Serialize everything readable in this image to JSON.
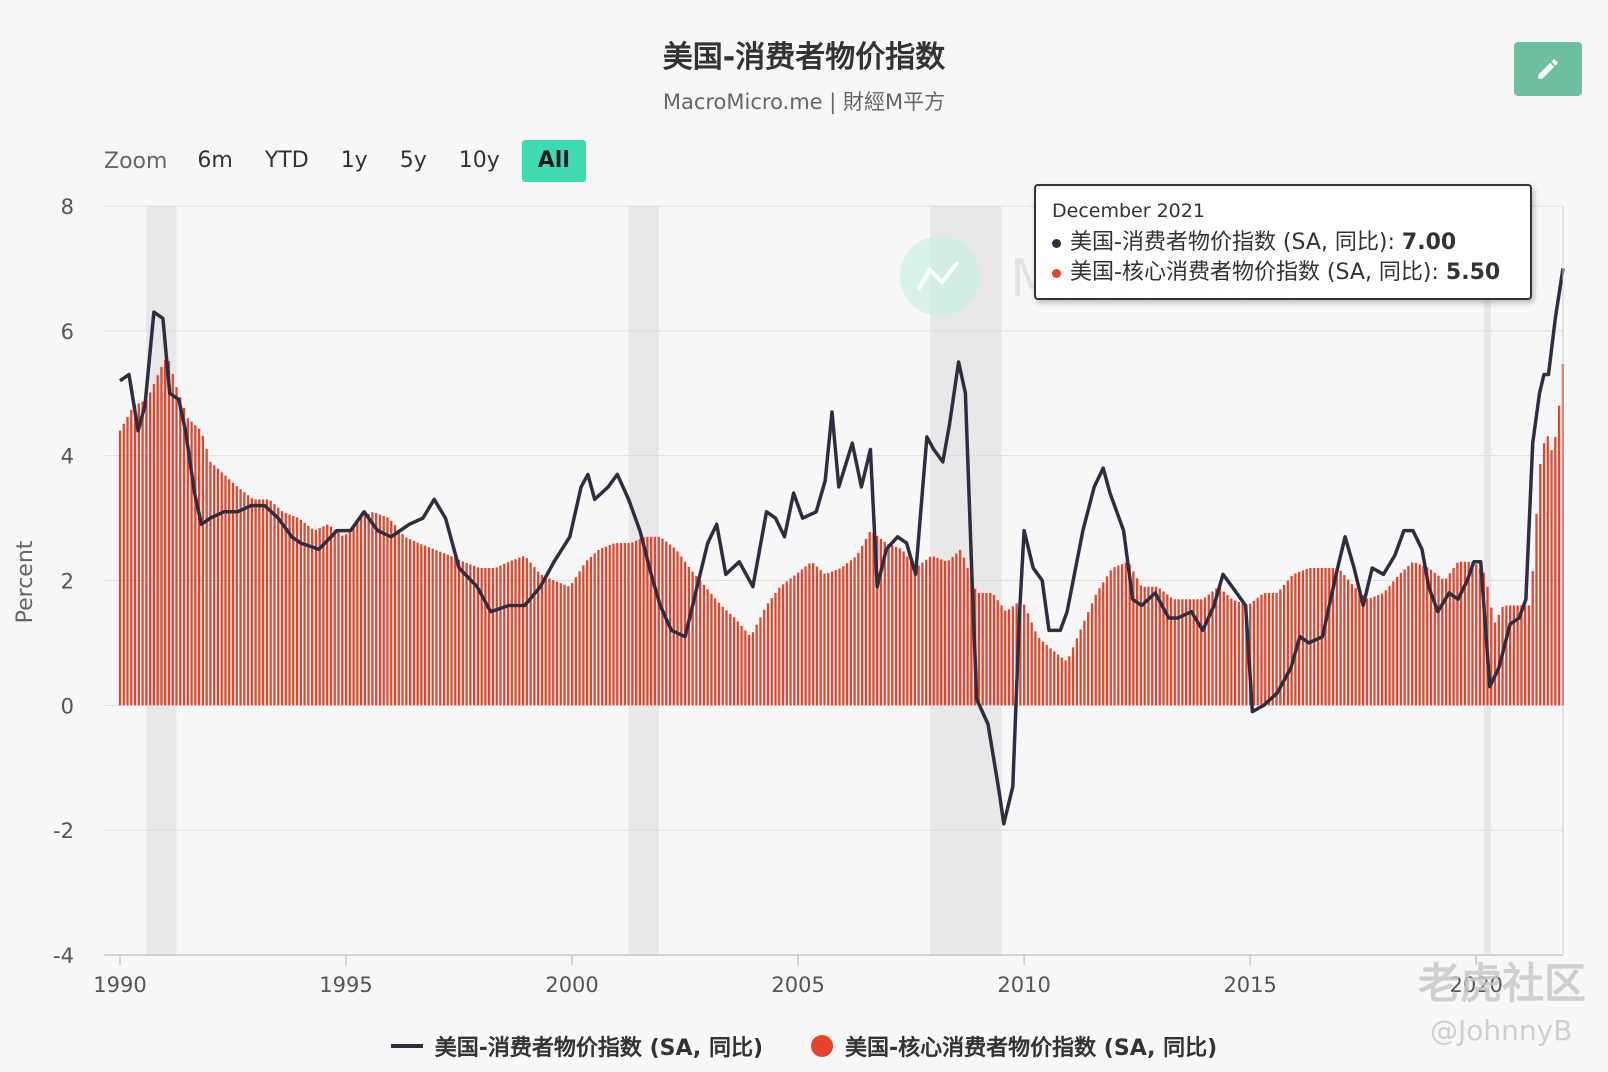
{
  "header": {
    "title": "美国-消费者物价指数",
    "subtitle": "MacroMicro.me | 財經M平方",
    "edit_icon": "pencil-icon"
  },
  "zoom": {
    "label": "Zoom",
    "options": [
      "6m",
      "YTD",
      "1y",
      "5y",
      "10y",
      "All"
    ],
    "active": "All"
  },
  "tooltip": {
    "date": "December 2021",
    "rows": [
      {
        "label": "美国-消费者物价指数 (SA, 同比): ",
        "value": "7.00",
        "color": "#2d2f40"
      },
      {
        "label": "美国-核心消费者物价指数 (SA, 同比): ",
        "value": "5.50",
        "color": "#e8432a"
      }
    ]
  },
  "legend": {
    "line_label": "美国-消费者物价指数 (SA, 同比)",
    "bar_label": "美国-核心消费者物价指数 (SA, 同比)"
  },
  "watermark": {
    "brand": "MacroMicro",
    "community": "老虎社区",
    "handle": "@JohnnyB"
  },
  "chart_data": {
    "type": "line+bar",
    "ylabel": "Percent",
    "ylim": [
      -4,
      8
    ],
    "yticks": [
      -4,
      -2,
      0,
      2,
      4,
      6,
      8
    ],
    "xlim": [
      1990.0,
      2021.92
    ],
    "xticks": [
      1990,
      1995,
      2000,
      2005,
      2010,
      2015,
      2020
    ],
    "recessions": [
      [
        1990.58,
        1991.25
      ],
      [
        2001.25,
        2001.92
      ],
      [
        2007.92,
        2009.5
      ],
      [
        2020.17,
        2020.33
      ]
    ],
    "colors": {
      "cpi": "#2d2f40",
      "core": "#e8432a",
      "recession": "#e8e8e8"
    },
    "series": [
      {
        "name": "美国-消费者物价指数 (SA, 同比)",
        "type": "line",
        "points": [
          [
            1990.0,
            5.2
          ],
          [
            1990.2,
            5.3
          ],
          [
            1990.4,
            4.4
          ],
          [
            1990.55,
            4.8
          ],
          [
            1990.75,
            6.3
          ],
          [
            1990.95,
            6.2
          ],
          [
            1991.1,
            5.0
          ],
          [
            1991.3,
            4.9
          ],
          [
            1991.45,
            4.4
          ],
          [
            1991.65,
            3.4
          ],
          [
            1991.8,
            2.9
          ],
          [
            1992.0,
            3.0
          ],
          [
            1992.3,
            3.1
          ],
          [
            1992.6,
            3.1
          ],
          [
            1992.9,
            3.2
          ],
          [
            1993.2,
            3.2
          ],
          [
            1993.5,
            3.0
          ],
          [
            1993.8,
            2.7
          ],
          [
            1994.0,
            2.6
          ],
          [
            1994.4,
            2.5
          ],
          [
            1994.8,
            2.8
          ],
          [
            1995.1,
            2.8
          ],
          [
            1995.4,
            3.1
          ],
          [
            1995.7,
            2.8
          ],
          [
            1996.0,
            2.7
          ],
          [
            1996.4,
            2.9
          ],
          [
            1996.7,
            3.0
          ],
          [
            1996.95,
            3.3
          ],
          [
            1997.2,
            3.0
          ],
          [
            1997.5,
            2.2
          ],
          [
            1997.9,
            1.9
          ],
          [
            1998.2,
            1.5
          ],
          [
            1998.6,
            1.6
          ],
          [
            1998.95,
            1.6
          ],
          [
            1999.3,
            1.9
          ],
          [
            1999.6,
            2.3
          ],
          [
            1999.95,
            2.7
          ],
          [
            2000.2,
            3.5
          ],
          [
            2000.35,
            3.7
          ],
          [
            2000.5,
            3.3
          ],
          [
            2000.8,
            3.5
          ],
          [
            2001.0,
            3.7
          ],
          [
            2001.25,
            3.3
          ],
          [
            2001.5,
            2.8
          ],
          [
            2001.75,
            2.1
          ],
          [
            2001.95,
            1.6
          ],
          [
            2002.2,
            1.2
          ],
          [
            2002.5,
            1.1
          ],
          [
            2002.8,
            2.0
          ],
          [
            2003.0,
            2.6
          ],
          [
            2003.2,
            2.9
          ],
          [
            2003.4,
            2.1
          ],
          [
            2003.7,
            2.3
          ],
          [
            2004.0,
            1.9
          ],
          [
            2004.3,
            3.1
          ],
          [
            2004.5,
            3.0
          ],
          [
            2004.7,
            2.7
          ],
          [
            2004.9,
            3.4
          ],
          [
            2005.1,
            3.0
          ],
          [
            2005.4,
            3.1
          ],
          [
            2005.6,
            3.6
          ],
          [
            2005.75,
            4.7
          ],
          [
            2005.9,
            3.5
          ],
          [
            2006.2,
            4.2
          ],
          [
            2006.4,
            3.5
          ],
          [
            2006.6,
            4.1
          ],
          [
            2006.75,
            1.9
          ],
          [
            2006.95,
            2.5
          ],
          [
            2007.2,
            2.7
          ],
          [
            2007.4,
            2.6
          ],
          [
            2007.6,
            2.1
          ],
          [
            2007.85,
            4.3
          ],
          [
            2008.0,
            4.1
          ],
          [
            2008.2,
            3.9
          ],
          [
            2008.35,
            4.5
          ],
          [
            2008.55,
            5.5
          ],
          [
            2008.7,
            5.0
          ],
          [
            2008.85,
            2.0
          ],
          [
            2008.95,
            0.1
          ],
          [
            2009.2,
            -0.3
          ],
          [
            2009.45,
            -1.4
          ],
          [
            2009.55,
            -1.9
          ],
          [
            2009.75,
            -1.3
          ],
          [
            2009.9,
            1.5
          ],
          [
            2010.0,
            2.8
          ],
          [
            2010.2,
            2.2
          ],
          [
            2010.4,
            2.0
          ],
          [
            2010.55,
            1.2
          ],
          [
            2010.8,
            1.2
          ],
          [
            2010.95,
            1.5
          ],
          [
            2011.3,
            2.8
          ],
          [
            2011.55,
            3.5
          ],
          [
            2011.75,
            3.8
          ],
          [
            2011.9,
            3.4
          ],
          [
            2012.2,
            2.8
          ],
          [
            2012.4,
            1.7
          ],
          [
            2012.6,
            1.6
          ],
          [
            2012.9,
            1.8
          ],
          [
            2013.2,
            1.4
          ],
          [
            2013.4,
            1.4
          ],
          [
            2013.7,
            1.5
          ],
          [
            2013.95,
            1.2
          ],
          [
            2014.2,
            1.6
          ],
          [
            2014.4,
            2.1
          ],
          [
            2014.6,
            1.9
          ],
          [
            2014.9,
            1.6
          ],
          [
            2015.05,
            -0.1
          ],
          [
            2015.3,
            0.0
          ],
          [
            2015.6,
            0.2
          ],
          [
            2015.9,
            0.6
          ],
          [
            2016.1,
            1.1
          ],
          [
            2016.3,
            1.0
          ],
          [
            2016.6,
            1.1
          ],
          [
            2016.9,
            2.1
          ],
          [
            2017.1,
            2.7
          ],
          [
            2017.3,
            2.2
          ],
          [
            2017.5,
            1.6
          ],
          [
            2017.7,
            2.2
          ],
          [
            2017.95,
            2.1
          ],
          [
            2018.2,
            2.4
          ],
          [
            2018.4,
            2.8
          ],
          [
            2018.6,
            2.8
          ],
          [
            2018.8,
            2.5
          ],
          [
            2018.95,
            1.9
          ],
          [
            2019.15,
            1.5
          ],
          [
            2019.4,
            1.8
          ],
          [
            2019.6,
            1.7
          ],
          [
            2019.8,
            2.0
          ],
          [
            2019.95,
            2.3
          ],
          [
            2020.1,
            2.3
          ],
          [
            2020.3,
            0.3
          ],
          [
            2020.5,
            0.6
          ],
          [
            2020.75,
            1.3
          ],
          [
            2020.95,
            1.4
          ],
          [
            2021.1,
            1.7
          ],
          [
            2021.25,
            4.2
          ],
          [
            2021.4,
            5.0
          ],
          [
            2021.5,
            5.3
          ],
          [
            2021.6,
            5.3
          ],
          [
            2021.75,
            6.2
          ],
          [
            2021.92,
            7.0
          ]
        ]
      },
      {
        "name": "美国-核心消费者物价指数 (SA, 同比)",
        "type": "bar",
        "points": [
          [
            1990.0,
            4.4
          ],
          [
            1990.3,
            4.8
          ],
          [
            1990.6,
            4.9
          ],
          [
            1990.9,
            5.4
          ],
          [
            1991.05,
            5.6
          ],
          [
            1991.25,
            5.1
          ],
          [
            1991.5,
            4.6
          ],
          [
            1991.8,
            4.4
          ],
          [
            1992.0,
            3.9
          ],
          [
            1992.3,
            3.7
          ],
          [
            1992.6,
            3.5
          ],
          [
            1992.95,
            3.3
          ],
          [
            1993.3,
            3.3
          ],
          [
            1993.6,
            3.1
          ],
          [
            1993.95,
            3.0
          ],
          [
            1994.3,
            2.8
          ],
          [
            1994.6,
            2.9
          ],
          [
            1994.95,
            2.7
          ],
          [
            1995.3,
            3.0
          ],
          [
            1995.6,
            3.1
          ],
          [
            1995.95,
            3.0
          ],
          [
            1996.3,
            2.7
          ],
          [
            1996.6,
            2.6
          ],
          [
            1996.95,
            2.5
          ],
          [
            1997.3,
            2.4
          ],
          [
            1997.6,
            2.3
          ],
          [
            1997.95,
            2.2
          ],
          [
            1998.3,
            2.2
          ],
          [
            1998.6,
            2.3
          ],
          [
            1998.95,
            2.4
          ],
          [
            1999.3,
            2.1
          ],
          [
            1999.6,
            2.0
          ],
          [
            1999.95,
            1.9
          ],
          [
            2000.3,
            2.3
          ],
          [
            2000.6,
            2.5
          ],
          [
            2000.95,
            2.6
          ],
          [
            2001.3,
            2.6
          ],
          [
            2001.6,
            2.7
          ],
          [
            2001.95,
            2.7
          ],
          [
            2002.3,
            2.5
          ],
          [
            2002.6,
            2.2
          ],
          [
            2002.95,
            1.9
          ],
          [
            2003.3,
            1.6
          ],
          [
            2003.6,
            1.4
          ],
          [
            2003.95,
            1.1
          ],
          [
            2004.3,
            1.6
          ],
          [
            2004.6,
            1.9
          ],
          [
            2004.95,
            2.1
          ],
          [
            2005.3,
            2.3
          ],
          [
            2005.6,
            2.1
          ],
          [
            2005.95,
            2.2
          ],
          [
            2006.3,
            2.4
          ],
          [
            2006.6,
            2.8
          ],
          [
            2006.95,
            2.6
          ],
          [
            2007.3,
            2.5
          ],
          [
            2007.6,
            2.2
          ],
          [
            2007.95,
            2.4
          ],
          [
            2008.3,
            2.3
          ],
          [
            2008.6,
            2.5
          ],
          [
            2008.95,
            1.8
          ],
          [
            2009.3,
            1.8
          ],
          [
            2009.6,
            1.5
          ],
          [
            2009.95,
            1.7
          ],
          [
            2010.3,
            1.1
          ],
          [
            2010.6,
            0.9
          ],
          [
            2010.95,
            0.7
          ],
          [
            2011.3,
            1.3
          ],
          [
            2011.6,
            1.8
          ],
          [
            2011.95,
            2.2
          ],
          [
            2012.3,
            2.3
          ],
          [
            2012.6,
            1.9
          ],
          [
            2012.95,
            1.9
          ],
          [
            2013.3,
            1.7
          ],
          [
            2013.6,
            1.7
          ],
          [
            2013.95,
            1.7
          ],
          [
            2014.3,
            1.9
          ],
          [
            2014.6,
            1.7
          ],
          [
            2014.95,
            1.6
          ],
          [
            2015.3,
            1.8
          ],
          [
            2015.6,
            1.8
          ],
          [
            2015.95,
            2.1
          ],
          [
            2016.3,
            2.2
          ],
          [
            2016.6,
            2.2
          ],
          [
            2016.95,
            2.2
          ],
          [
            2017.3,
            1.9
          ],
          [
            2017.6,
            1.7
          ],
          [
            2017.95,
            1.8
          ],
          [
            2018.3,
            2.1
          ],
          [
            2018.6,
            2.3
          ],
          [
            2018.95,
            2.2
          ],
          [
            2019.3,
            2.0
          ],
          [
            2019.6,
            2.3
          ],
          [
            2019.95,
            2.3
          ],
          [
            2020.2,
            2.1
          ],
          [
            2020.4,
            1.3
          ],
          [
            2020.6,
            1.6
          ],
          [
            2020.95,
            1.6
          ],
          [
            2021.2,
            1.6
          ],
          [
            2021.4,
            3.8
          ],
          [
            2021.55,
            4.4
          ],
          [
            2021.7,
            4.0
          ],
          [
            2021.85,
            4.9
          ],
          [
            2021.92,
            5.5
          ]
        ]
      }
    ]
  }
}
